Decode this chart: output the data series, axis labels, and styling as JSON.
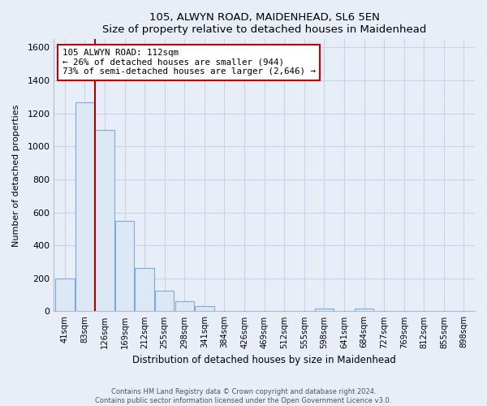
{
  "title": "105, ALWYN ROAD, MAIDENHEAD, SL6 5EN",
  "subtitle": "Size of property relative to detached houses in Maidenhead",
  "xlabel": "Distribution of detached houses by size in Maidenhead",
  "ylabel": "Number of detached properties",
  "bar_labels": [
    "41sqm",
    "83sqm",
    "126sqm",
    "169sqm",
    "212sqm",
    "255sqm",
    "298sqm",
    "341sqm",
    "384sqm",
    "426sqm",
    "469sqm",
    "512sqm",
    "555sqm",
    "598sqm",
    "641sqm",
    "684sqm",
    "727sqm",
    "769sqm",
    "812sqm",
    "855sqm",
    "898sqm"
  ],
  "bar_values": [
    200,
    1270,
    1100,
    550,
    265,
    125,
    60,
    30,
    0,
    0,
    0,
    0,
    0,
    15,
    0,
    18,
    0,
    0,
    0,
    0,
    0
  ],
  "bar_color_fill": "#dde8f5",
  "bar_color_edge": "#7aabda",
  "vline_color": "#aa0000",
  "vline_x_idx": 1.5,
  "annotation_title": "105 ALWYN ROAD: 112sqm",
  "annotation_line1": "← 26% of detached houses are smaller (944)",
  "annotation_line2": "73% of semi-detached houses are larger (2,646) →",
  "annotation_box_facecolor": "#ffffff",
  "annotation_box_edgecolor": "#cc0000",
  "ylim": [
    0,
    1650
  ],
  "yticks": [
    0,
    200,
    400,
    600,
    800,
    1000,
    1200,
    1400,
    1600
  ],
  "footer_line1": "Contains HM Land Registry data © Crown copyright and database right 2024.",
  "footer_line2": "Contains public sector information licensed under the Open Government Licence v3.0.",
  "bg_color": "#e8eef8",
  "plot_bg_color": "#e8eef8",
  "grid_color": "#c8d4e8",
  "spine_color": "#b0bcd0"
}
